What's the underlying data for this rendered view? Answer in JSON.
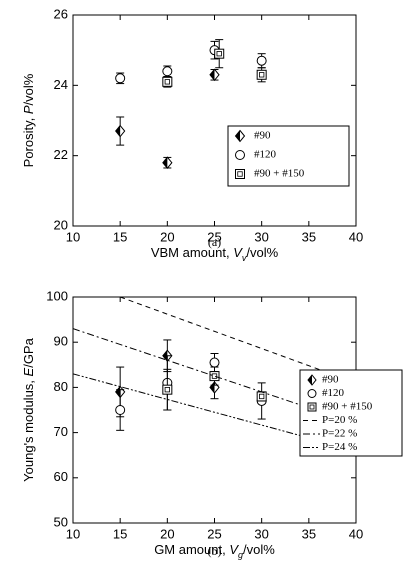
{
  "chart_data": [
    {
      "type": "scatter",
      "caption": "(a)",
      "xlabel": [
        "VBM amount, ",
        "V",
        "v",
        "/vol%"
      ],
      "ylabel": [
        "Porosity, ",
        "P",
        "/vol%"
      ],
      "xlim": [
        10,
        40
      ],
      "xticks": [
        10,
        15,
        20,
        25,
        30,
        35,
        40
      ],
      "ylim": [
        20,
        26
      ],
      "yticks": [
        20,
        22,
        24,
        26
      ],
      "legend": "right",
      "series": [
        {
          "name": "#90",
          "color": "#000",
          "marker": "diamond",
          "x": [
            15,
            20,
            25
          ],
          "values": [
            22.7,
            21.8,
            24.3
          ],
          "errors": [
            0.4,
            0.15,
            0.15
          ]
        },
        {
          "name": "#120",
          "color": "#000",
          "marker": "circle",
          "x": [
            15,
            20,
            25,
            30
          ],
          "values": [
            24.2,
            24.4,
            25.0,
            24.7
          ],
          "errors": [
            0.15,
            0.15,
            0.25,
            0.2
          ]
        },
        {
          "name": "#90 + #150",
          "color": "#000",
          "marker": "square",
          "x": [
            20,
            25.5,
            30
          ],
          "values": [
            24.1,
            24.9,
            24.3
          ],
          "errors": [
            0.15,
            0.4,
            0.2
          ]
        }
      ]
    },
    {
      "type": "scatter",
      "caption": "(b)",
      "xlabel": [
        "GM amount, ",
        "V",
        "g",
        "/vol%"
      ],
      "ylabel": [
        "Young's modulus, ",
        "E",
        "/GPa"
      ],
      "xlim": [
        10,
        40
      ],
      "xticks": [
        10,
        15,
        20,
        25,
        30,
        35,
        40
      ],
      "ylim": [
        50,
        100
      ],
      "yticks": [
        50,
        60,
        70,
        80,
        90,
        100
      ],
      "legend": "lower right",
      "series": [
        {
          "name": "#90",
          "color": "#000",
          "marker": "diamond",
          "x": [
            15,
            20,
            25
          ],
          "values": [
            79,
            87,
            80
          ],
          "errors": [
            5.5,
            3.5,
            2.5
          ]
        },
        {
          "name": "#120",
          "color": "#000",
          "marker": "circle",
          "x": [
            15,
            20,
            25,
            30
          ],
          "values": [
            75,
            81,
            85.5,
            77
          ],
          "errors": [
            4.5,
            6,
            2,
            4
          ]
        },
        {
          "name": "#90 + #150",
          "color": "#000",
          "marker": "square",
          "x": [
            20,
            25,
            30
          ],
          "values": [
            79.5,
            82.5,
            78
          ],
          "errors": [
            4.5,
            2,
            1
          ]
        },
        {
          "name": "P=20 %",
          "color": "#000",
          "dash": "5,4",
          "x": [
            15,
            40
          ],
          "values": [
            100,
            81
          ]
        },
        {
          "name": "P=22 %",
          "color": "#000",
          "dash": "7,3,2,3",
          "x": [
            10,
            40
          ],
          "values": [
            93,
            72
          ]
        },
        {
          "name": "P=24 %",
          "color": "#000",
          "dash": "7,2,2,2,2,2",
          "x": [
            10,
            40
          ],
          "values": [
            83,
            66
          ]
        }
      ]
    }
  ]
}
